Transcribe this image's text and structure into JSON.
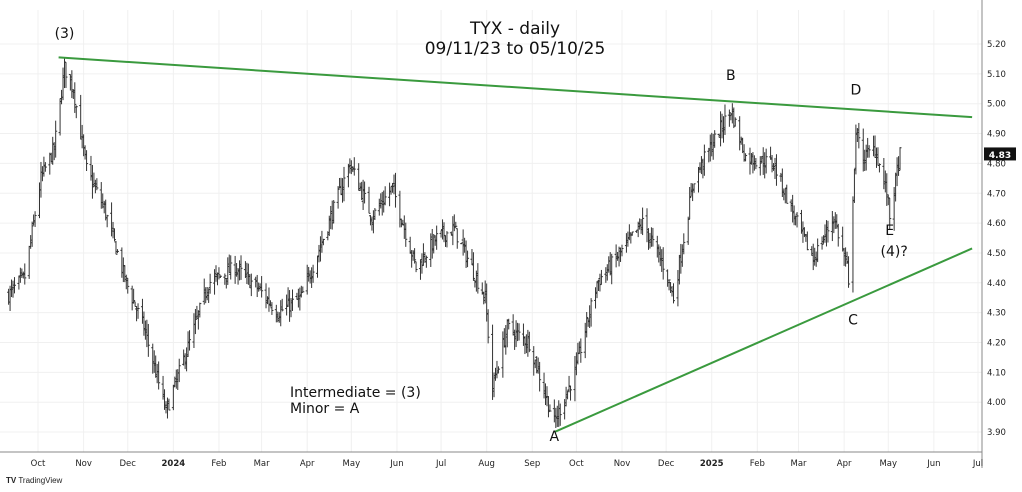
{
  "chart_data": {
    "type": "ohlc-bar",
    "title": "TYX - daily",
    "subtitle": "09/11/23 to 05/10/25",
    "last_price": "4.83",
    "ylim": [
      3.85,
      5.27
    ],
    "y_ticks": [
      "5.20",
      "5.10",
      "5.00",
      "4.90",
      "4.80",
      "4.70",
      "4.60",
      "4.50",
      "4.40",
      "4.30",
      "4.20",
      "4.10",
      "4.00",
      "3.90"
    ],
    "x_ticks": [
      {
        "label": "Oct",
        "date": "2023-10-01"
      },
      {
        "label": "Nov",
        "date": "2023-11-01"
      },
      {
        "label": "Dec",
        "date": "2023-12-01"
      },
      {
        "label": "2024",
        "date": "2024-01-01",
        "bold": true
      },
      {
        "label": "Feb",
        "date": "2024-02-01"
      },
      {
        "label": "Mar",
        "date": "2024-03-01"
      },
      {
        "label": "Apr",
        "date": "2024-04-01"
      },
      {
        "label": "May",
        "date": "2024-05-01"
      },
      {
        "label": "Jun",
        "date": "2024-06-01"
      },
      {
        "label": "Jul",
        "date": "2024-07-01"
      },
      {
        "label": "Aug",
        "date": "2024-08-01"
      },
      {
        "label": "Sep",
        "date": "2024-09-01"
      },
      {
        "label": "Oct",
        "date": "2024-10-01"
      },
      {
        "label": "Nov",
        "date": "2024-11-01"
      },
      {
        "label": "Dec",
        "date": "2024-12-01"
      },
      {
        "label": "2025",
        "date": "2025-01-01",
        "bold": true
      },
      {
        "label": "Feb",
        "date": "2025-02-01"
      },
      {
        "label": "Mar",
        "date": "2025-03-01"
      },
      {
        "label": "Apr",
        "date": "2025-04-01"
      },
      {
        "label": "May",
        "date": "2025-05-01"
      },
      {
        "label": "Jun",
        "date": "2025-06-01"
      },
      {
        "label": "Jul",
        "date": "2025-07-01"
      }
    ],
    "price_keypoints": [
      [
        "2023-09-11",
        4.36
      ],
      [
        "2023-09-22",
        4.42
      ],
      [
        "2023-10-03",
        4.75
      ],
      [
        "2023-10-12",
        4.85
      ],
      [
        "2023-10-19",
        5.12
      ],
      [
        "2023-10-25",
        5.05
      ],
      [
        "2023-11-03",
        4.78
      ],
      [
        "2023-11-15",
        4.65
      ],
      [
        "2023-11-30",
        4.4
      ],
      [
        "2023-12-12",
        4.25
      ],
      [
        "2023-12-27",
        3.97
      ],
      [
        "2024-01-12",
        4.2
      ],
      [
        "2024-01-25",
        4.4
      ],
      [
        "2024-02-12",
        4.45
      ],
      [
        "2024-02-28",
        4.38
      ],
      [
        "2024-03-12",
        4.3
      ],
      [
        "2024-03-28",
        4.35
      ],
      [
        "2024-04-12",
        4.55
      ],
      [
        "2024-04-30",
        4.8
      ],
      [
        "2024-05-15",
        4.62
      ],
      [
        "2024-05-29",
        4.72
      ],
      [
        "2024-06-14",
        4.45
      ],
      [
        "2024-06-28",
        4.55
      ],
      [
        "2024-07-10",
        4.58
      ],
      [
        "2024-07-31",
        4.35
      ],
      [
        "2024-08-05",
        4.05
      ],
      [
        "2024-08-15",
        4.25
      ],
      [
        "2024-08-30",
        4.2
      ],
      [
        "2024-09-16",
        3.93
      ],
      [
        "2024-09-30",
        4.1
      ],
      [
        "2024-10-15",
        4.4
      ],
      [
        "2024-10-31",
        4.5
      ],
      [
        "2024-11-15",
        4.6
      ],
      [
        "2024-11-30",
        4.45
      ],
      [
        "2024-12-06",
        4.35
      ],
      [
        "2024-12-20",
        4.75
      ],
      [
        "2025-01-14",
        4.98
      ],
      [
        "2025-01-24",
        4.82
      ],
      [
        "2025-02-12",
        4.8
      ],
      [
        "2025-02-28",
        4.6
      ],
      [
        "2025-03-11",
        4.48
      ],
      [
        "2025-03-25",
        4.62
      ],
      [
        "2025-04-03",
        4.45
      ],
      [
        "2025-04-04",
        4.38
      ],
      [
        "2025-04-09",
        4.9
      ],
      [
        "2025-04-14",
        4.82
      ],
      [
        "2025-04-22",
        4.85
      ],
      [
        "2025-04-30",
        4.7
      ],
      [
        "2025-05-02",
        4.62
      ],
      [
        "2025-05-09",
        4.83
      ]
    ],
    "trendlines": [
      {
        "name": "upper",
        "from": [
          "2023-10-15",
          5.155
        ],
        "to": [
          "2025-06-27",
          4.955
        ],
        "color": "#3a9a3e"
      },
      {
        "name": "lower",
        "from": [
          "2024-09-16",
          3.9
        ],
        "to": [
          "2025-06-27",
          4.515
        ],
        "color": "#3a9a3e"
      }
    ],
    "annotations": [
      {
        "text": "(3)",
        "date": "2023-10-19",
        "price": 5.22
      },
      {
        "text": "B",
        "date": "2025-01-14",
        "price": 5.08
      },
      {
        "text": "D",
        "date": "2025-04-09",
        "price": 5.03
      },
      {
        "text": "E",
        "date": "2025-05-02",
        "price": 4.56
      },
      {
        "text": "(4)?",
        "date": "2025-05-05",
        "price": 4.49
      },
      {
        "text": "C",
        "date": "2025-04-07",
        "price": 4.26
      },
      {
        "text": "A",
        "date": "2024-09-16",
        "price": 3.87
      }
    ],
    "legend_notes": [
      "Intermediate = (3)",
      "Minor = A"
    ]
  },
  "footer": {
    "brand": "TradingView"
  }
}
